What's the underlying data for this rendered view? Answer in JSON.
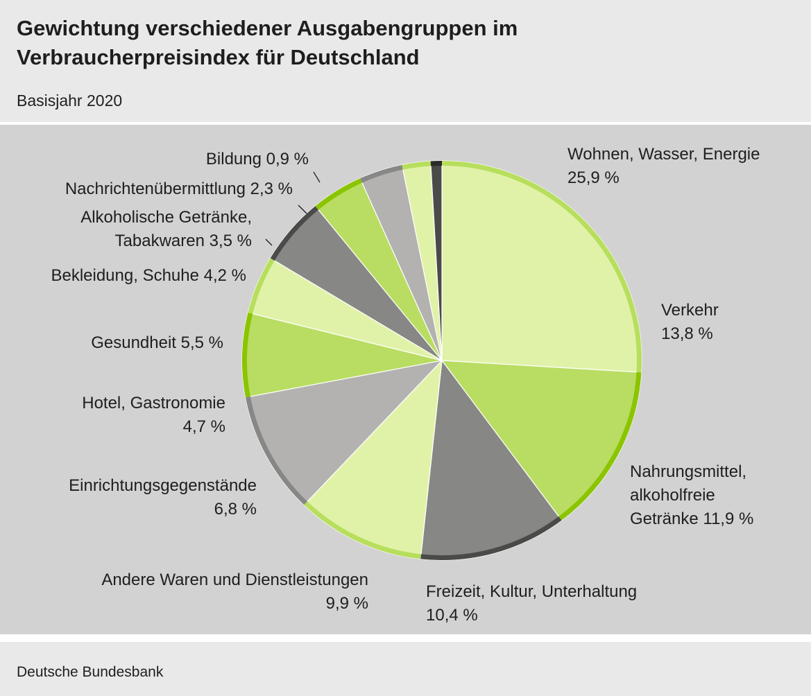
{
  "title": {
    "line1": "Gewichtung verschiedener Ausgabengruppen im",
    "line2": "Verbraucherpreisindex für Deutschland"
  },
  "subtitle": "Basisjahr 2020",
  "source": "Deutsche Bundesbank",
  "chart_data": {
    "type": "pie",
    "title": "Gewichtung verschiedener Ausgabengruppen im Verbraucherpreisindex für Deutschland",
    "subtitle": "Basisjahr 2020",
    "unit": "%",
    "start": "12 o'clock, clockwise",
    "slices": [
      {
        "name": "Wohnen, Wasser, Energie",
        "value": 25.9,
        "label_lines": [
          "Wohnen, Wasser, Energie",
          "25,9 %"
        ],
        "fill": "#e0f2a8",
        "edge": "#b7de5d"
      },
      {
        "name": "Verkehr",
        "value": 13.8,
        "label_lines": [
          "Verkehr",
          "13,8 %"
        ],
        "fill": "#b9dd62",
        "edge": "#8bc400"
      },
      {
        "name": "Nahrungsmittel, alkoholfreie Getränke",
        "value": 11.9,
        "label_lines": [
          "Nahrungsmittel,",
          "alkoholfreie",
          "Getränke 11,9 %"
        ],
        "fill": "#878785",
        "edge": "#4a4a48"
      },
      {
        "name": "Freizeit, Kultur, Unterhaltung",
        "value": 10.4,
        "label_lines": [
          "Freizeit, Kultur, Unterhaltung",
          "10,4 %"
        ],
        "fill": "#e0f2a8",
        "edge": "#b7de5d"
      },
      {
        "name": "Andere Waren und Dienstleistungen",
        "value": 9.9,
        "label_lines": [
          "Andere Waren und Dienstleistungen",
          "9,9 %"
        ],
        "fill": "#b3b2b0",
        "edge": "#878785"
      },
      {
        "name": "Einrichtungsgegenstände",
        "value": 6.8,
        "label_lines": [
          "Einrichtungsgegenstände",
          "6,8 %"
        ],
        "fill": "#b9dd62",
        "edge": "#8bc400"
      },
      {
        "name": "Hotel, Gastronomie",
        "value": 4.7,
        "label_lines": [
          "Hotel, Gastronomie",
          "4,7 %"
        ],
        "fill": "#e0f2a8",
        "edge": "#b7de5d"
      },
      {
        "name": "Gesundheit",
        "value": 5.5,
        "label_lines": [
          "Gesundheit 5,5 %"
        ],
        "fill": "#878785",
        "edge": "#4a4a48"
      },
      {
        "name": "Bekleidung, Schuhe",
        "value": 4.2,
        "label_lines": [
          "Bekleidung, Schuhe 4,2 %"
        ],
        "fill": "#b9dd62",
        "edge": "#8bc400"
      },
      {
        "name": "Alkoholische Getränke, Tabakwaren",
        "value": 3.5,
        "label_lines": [
          "Alkoholische Getränke,",
          "Tabakwaren 3,5 %"
        ],
        "fill": "#b3b2b0",
        "edge": "#878785"
      },
      {
        "name": "Nachrichtenübermittlung",
        "value": 2.3,
        "label_lines": [
          "Nachrichtenübermittlung 2,3 %"
        ],
        "fill": "#e0f2a8",
        "edge": "#b7de5d"
      },
      {
        "name": "Bildung",
        "value": 0.9,
        "label_lines": [
          "Bildung 0,9 %"
        ],
        "fill": "#4a4a48",
        "edge": "#2a2a28"
      }
    ]
  }
}
